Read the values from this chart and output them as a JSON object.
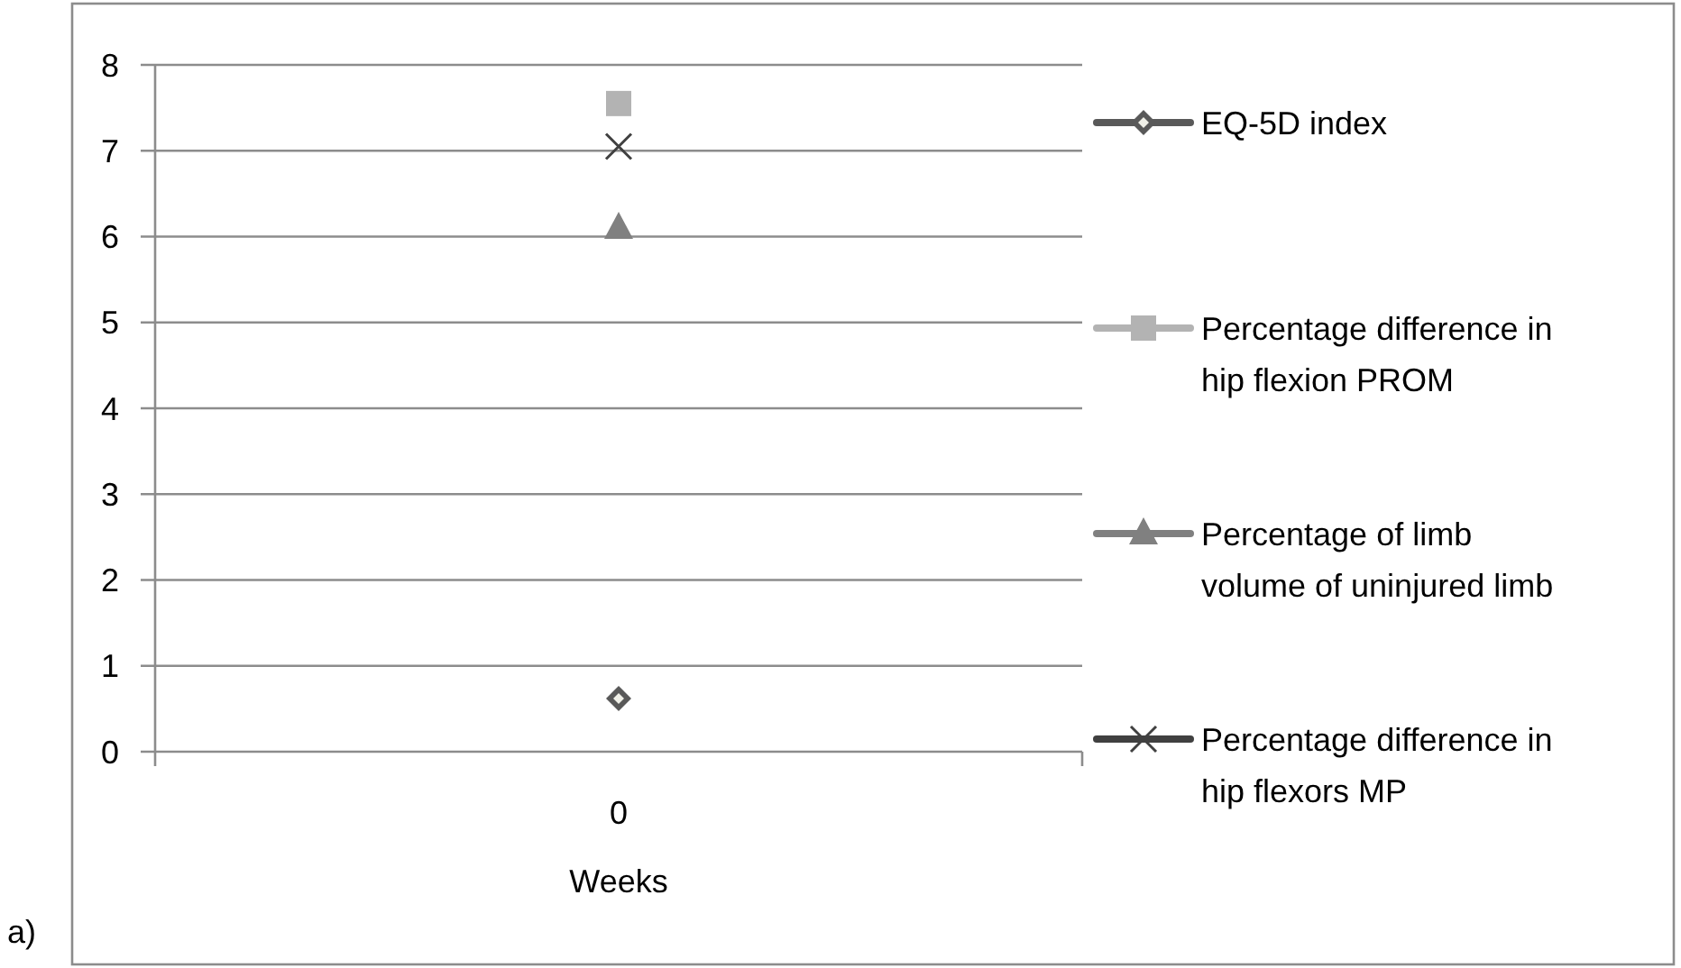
{
  "chart_data": {
    "type": "line",
    "xlabel": "Weeks",
    "categories": [
      "0"
    ],
    "ylim": [
      0,
      8
    ],
    "yticks": [
      0,
      1,
      2,
      3,
      4,
      5,
      6,
      7,
      8
    ],
    "grid": "y",
    "legend": "right",
    "annotations": [
      "a)"
    ],
    "series": [
      {
        "name": "EQ-5D index",
        "color": "#595959",
        "marker": "diamond",
        "values": [
          0.62
        ]
      },
      {
        "name": "Percentage difference in hip flexion PROM",
        "color": "#b3b3b3",
        "marker": "square",
        "values": [
          7.55
        ]
      },
      {
        "name": "Percentage of limb volume of uninjured limb",
        "color": "#808080",
        "marker": "triangle",
        "values": [
          6.1
        ]
      },
      {
        "name": "Percentage difference in hip flexors MP",
        "color": "#404040",
        "marker": "cross",
        "values": [
          7.05
        ]
      }
    ]
  }
}
